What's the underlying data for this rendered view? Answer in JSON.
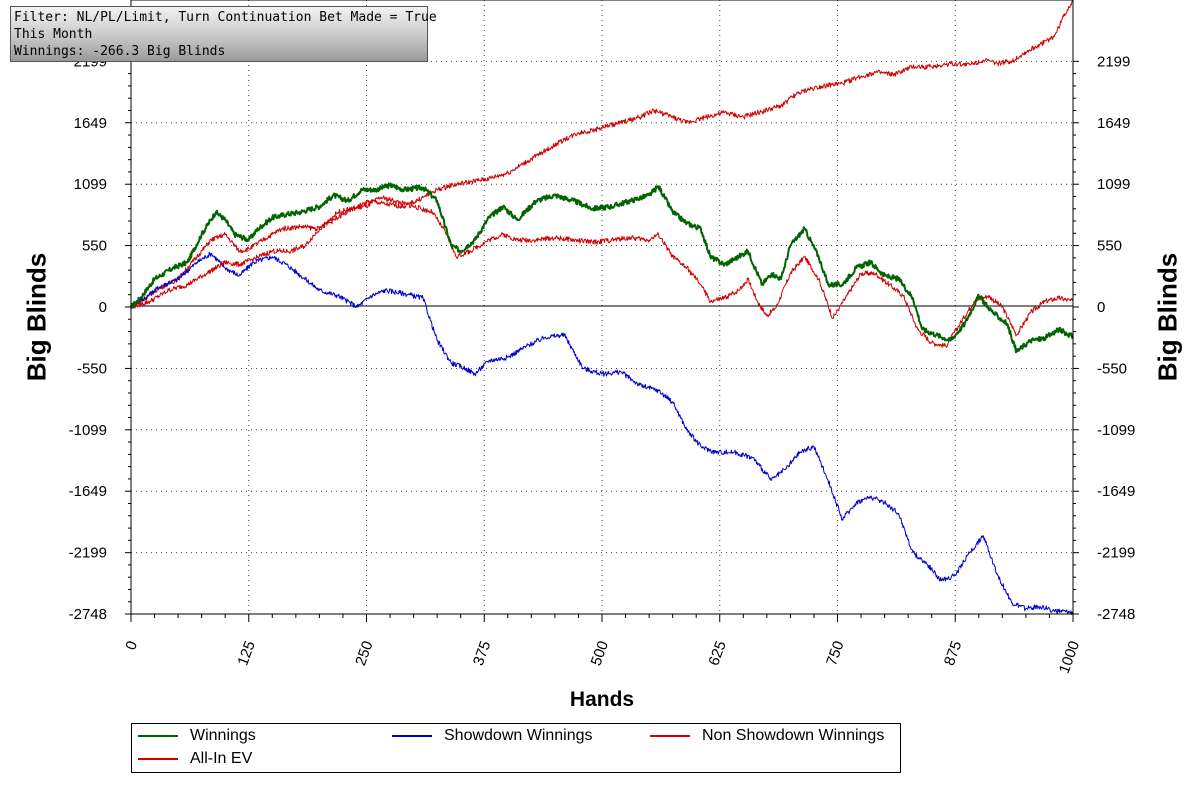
{
  "info_box": {
    "line1": "Filter: NL/PL/Limit, Turn Continuation Bet Made = True",
    "line2": "This Month",
    "line3": "Winnings: -266.3 Big Blinds"
  },
  "chart_data": {
    "type": "line",
    "title": "",
    "xlabel": "Hands",
    "ylabel": "Big Blinds",
    "xlim": [
      0,
      1000
    ],
    "ylim": [
      -2748,
      2748
    ],
    "x_ticks": [
      0,
      125,
      250,
      375,
      500,
      625,
      750,
      875,
      1000
    ],
    "y_ticks": [
      2199,
      1649,
      1099,
      550,
      0,
      -550,
      -1099,
      -1649,
      -2199,
      -2748
    ],
    "grid": true,
    "legend_position": "bottom",
    "series": [
      {
        "name": "Winnings",
        "color": "#006400",
        "points": [
          [
            0,
            0
          ],
          [
            10,
            80
          ],
          [
            25,
            250
          ],
          [
            45,
            350
          ],
          [
            60,
            400
          ],
          [
            75,
            650
          ],
          [
            90,
            850
          ],
          [
            100,
            780
          ],
          [
            110,
            650
          ],
          [
            125,
            600
          ],
          [
            135,
            700
          ],
          [
            150,
            800
          ],
          [
            165,
            830
          ],
          [
            180,
            850
          ],
          [
            200,
            900
          ],
          [
            215,
            1000
          ],
          [
            230,
            950
          ],
          [
            245,
            1050
          ],
          [
            260,
            1050
          ],
          [
            275,
            1090
          ],
          [
            290,
            1050
          ],
          [
            310,
            1070
          ],
          [
            325,
            950
          ],
          [
            340,
            550
          ],
          [
            350,
            500
          ],
          [
            365,
            600
          ],
          [
            380,
            800
          ],
          [
            395,
            900
          ],
          [
            410,
            780
          ],
          [
            430,
            950
          ],
          [
            450,
            1000
          ],
          [
            470,
            950
          ],
          [
            490,
            880
          ],
          [
            510,
            900
          ],
          [
            530,
            950
          ],
          [
            550,
            1000
          ],
          [
            560,
            1080
          ],
          [
            575,
            850
          ],
          [
            590,
            750
          ],
          [
            605,
            700
          ],
          [
            615,
            450
          ],
          [
            630,
            380
          ],
          [
            645,
            450
          ],
          [
            655,
            500
          ],
          [
            670,
            200
          ],
          [
            680,
            300
          ],
          [
            690,
            250
          ],
          [
            700,
            550
          ],
          [
            715,
            700
          ],
          [
            730,
            450
          ],
          [
            740,
            200
          ],
          [
            755,
            200
          ],
          [
            770,
            350
          ],
          [
            785,
            400
          ],
          [
            800,
            280
          ],
          [
            815,
            250
          ],
          [
            830,
            80
          ],
          [
            840,
            -200
          ],
          [
            855,
            -250
          ],
          [
            870,
            -300
          ],
          [
            885,
            -150
          ],
          [
            900,
            100
          ],
          [
            915,
            -50
          ],
          [
            930,
            -150
          ],
          [
            940,
            -400
          ],
          [
            955,
            -300
          ],
          [
            970,
            -280
          ],
          [
            985,
            -200
          ],
          [
            1000,
            -266
          ]
        ]
      },
      {
        "name": "Showdown Winnings",
        "color": "#0000cc",
        "points": [
          [
            0,
            0
          ],
          [
            15,
            80
          ],
          [
            30,
            180
          ],
          [
            50,
            250
          ],
          [
            70,
            400
          ],
          [
            85,
            480
          ],
          [
            100,
            350
          ],
          [
            115,
            280
          ],
          [
            130,
            400
          ],
          [
            150,
            450
          ],
          [
            165,
            380
          ],
          [
            185,
            250
          ],
          [
            200,
            150
          ],
          [
            220,
            100
          ],
          [
            240,
            0
          ],
          [
            255,
            100
          ],
          [
            270,
            150
          ],
          [
            290,
            120
          ],
          [
            310,
            80
          ],
          [
            325,
            -300
          ],
          [
            340,
            -500
          ],
          [
            355,
            -550
          ],
          [
            365,
            -600
          ],
          [
            380,
            -480
          ],
          [
            400,
            -450
          ],
          [
            420,
            -350
          ],
          [
            440,
            -270
          ],
          [
            460,
            -250
          ],
          [
            480,
            -550
          ],
          [
            500,
            -600
          ],
          [
            520,
            -580
          ],
          [
            540,
            -700
          ],
          [
            560,
            -750
          ],
          [
            575,
            -850
          ],
          [
            590,
            -1100
          ],
          [
            605,
            -1250
          ],
          [
            620,
            -1300
          ],
          [
            640,
            -1300
          ],
          [
            660,
            -1350
          ],
          [
            680,
            -1550
          ],
          [
            695,
            -1450
          ],
          [
            710,
            -1300
          ],
          [
            725,
            -1250
          ],
          [
            740,
            -1550
          ],
          [
            755,
            -1900
          ],
          [
            770,
            -1750
          ],
          [
            785,
            -1700
          ],
          [
            800,
            -1750
          ],
          [
            815,
            -1850
          ],
          [
            830,
            -2200
          ],
          [
            845,
            -2300
          ],
          [
            860,
            -2450
          ],
          [
            875,
            -2400
          ],
          [
            890,
            -2200
          ],
          [
            905,
            -2050
          ],
          [
            920,
            -2400
          ],
          [
            935,
            -2650
          ],
          [
            950,
            -2700
          ],
          [
            965,
            -2680
          ],
          [
            980,
            -2720
          ],
          [
            1000,
            -2740
          ]
        ]
      },
      {
        "name": "Non Showdown Winnings",
        "color": "#d00000",
        "points": [
          [
            0,
            0
          ],
          [
            20,
            50
          ],
          [
            40,
            150
          ],
          [
            60,
            200
          ],
          [
            80,
            300
          ],
          [
            100,
            400
          ],
          [
            115,
            380
          ],
          [
            130,
            430
          ],
          [
            150,
            500
          ],
          [
            170,
            500
          ],
          [
            185,
            550
          ],
          [
            200,
            700
          ],
          [
            220,
            800
          ],
          [
            240,
            900
          ],
          [
            255,
            950
          ],
          [
            270,
            920
          ],
          [
            290,
            900
          ],
          [
            310,
            980
          ],
          [
            325,
            1050
          ],
          [
            340,
            1090
          ],
          [
            360,
            1120
          ],
          [
            380,
            1150
          ],
          [
            400,
            1200
          ],
          [
            420,
            1300
          ],
          [
            440,
            1400
          ],
          [
            460,
            1500
          ],
          [
            475,
            1560
          ],
          [
            490,
            1580
          ],
          [
            505,
            1620
          ],
          [
            520,
            1650
          ],
          [
            540,
            1700
          ],
          [
            555,
            1760
          ],
          [
            575,
            1700
          ],
          [
            590,
            1650
          ],
          [
            610,
            1700
          ],
          [
            630,
            1740
          ],
          [
            650,
            1700
          ],
          [
            670,
            1750
          ],
          [
            690,
            1800
          ],
          [
            705,
            1900
          ],
          [
            720,
            1950
          ],
          [
            735,
            1980
          ],
          [
            755,
            2000
          ],
          [
            770,
            2050
          ],
          [
            790,
            2100
          ],
          [
            810,
            2080
          ],
          [
            830,
            2150
          ],
          [
            850,
            2150
          ],
          [
            870,
            2180
          ],
          [
            890,
            2170
          ],
          [
            905,
            2210
          ],
          [
            920,
            2180
          ],
          [
            935,
            2200
          ],
          [
            950,
            2280
          ],
          [
            965,
            2350
          ],
          [
            980,
            2420
          ],
          [
            990,
            2600
          ],
          [
            1000,
            2748
          ]
        ]
      },
      {
        "name": "All-In EV",
        "color": "#d00000",
        "points": [
          [
            0,
            0
          ],
          [
            15,
            80
          ],
          [
            30,
            170
          ],
          [
            50,
            250
          ],
          [
            70,
            450
          ],
          [
            85,
            600
          ],
          [
            100,
            650
          ],
          [
            115,
            500
          ],
          [
            125,
            520
          ],
          [
            140,
            600
          ],
          [
            160,
            700
          ],
          [
            180,
            720
          ],
          [
            200,
            700
          ],
          [
            220,
            850
          ],
          [
            235,
            880
          ],
          [
            250,
            900
          ],
          [
            265,
            980
          ],
          [
            280,
            950
          ],
          [
            300,
            900
          ],
          [
            320,
            850
          ],
          [
            335,
            650
          ],
          [
            345,
            450
          ],
          [
            360,
            500
          ],
          [
            380,
            600
          ],
          [
            395,
            650
          ],
          [
            410,
            600
          ],
          [
            430,
            600
          ],
          [
            450,
            620
          ],
          [
            470,
            600
          ],
          [
            490,
            580
          ],
          [
            510,
            600
          ],
          [
            530,
            620
          ],
          [
            550,
            600
          ],
          [
            560,
            650
          ],
          [
            575,
            450
          ],
          [
            590,
            350
          ],
          [
            605,
            200
          ],
          [
            615,
            50
          ],
          [
            630,
            80
          ],
          [
            645,
            150
          ],
          [
            655,
            250
          ],
          [
            665,
            50
          ],
          [
            675,
            -80
          ],
          [
            685,
            0
          ],
          [
            700,
            300
          ],
          [
            715,
            450
          ],
          [
            730,
            250
          ],
          [
            745,
            -100
          ],
          [
            760,
            100
          ],
          [
            775,
            300
          ],
          [
            790,
            300
          ],
          [
            805,
            200
          ],
          [
            820,
            100
          ],
          [
            835,
            -200
          ],
          [
            850,
            -320
          ],
          [
            865,
            -350
          ],
          [
            880,
            -150
          ],
          [
            895,
            50
          ],
          [
            910,
            100
          ],
          [
            925,
            0
          ],
          [
            940,
            -250
          ],
          [
            955,
            -50
          ],
          [
            970,
            50
          ],
          [
            985,
            80
          ],
          [
            1000,
            50
          ]
        ]
      }
    ]
  }
}
